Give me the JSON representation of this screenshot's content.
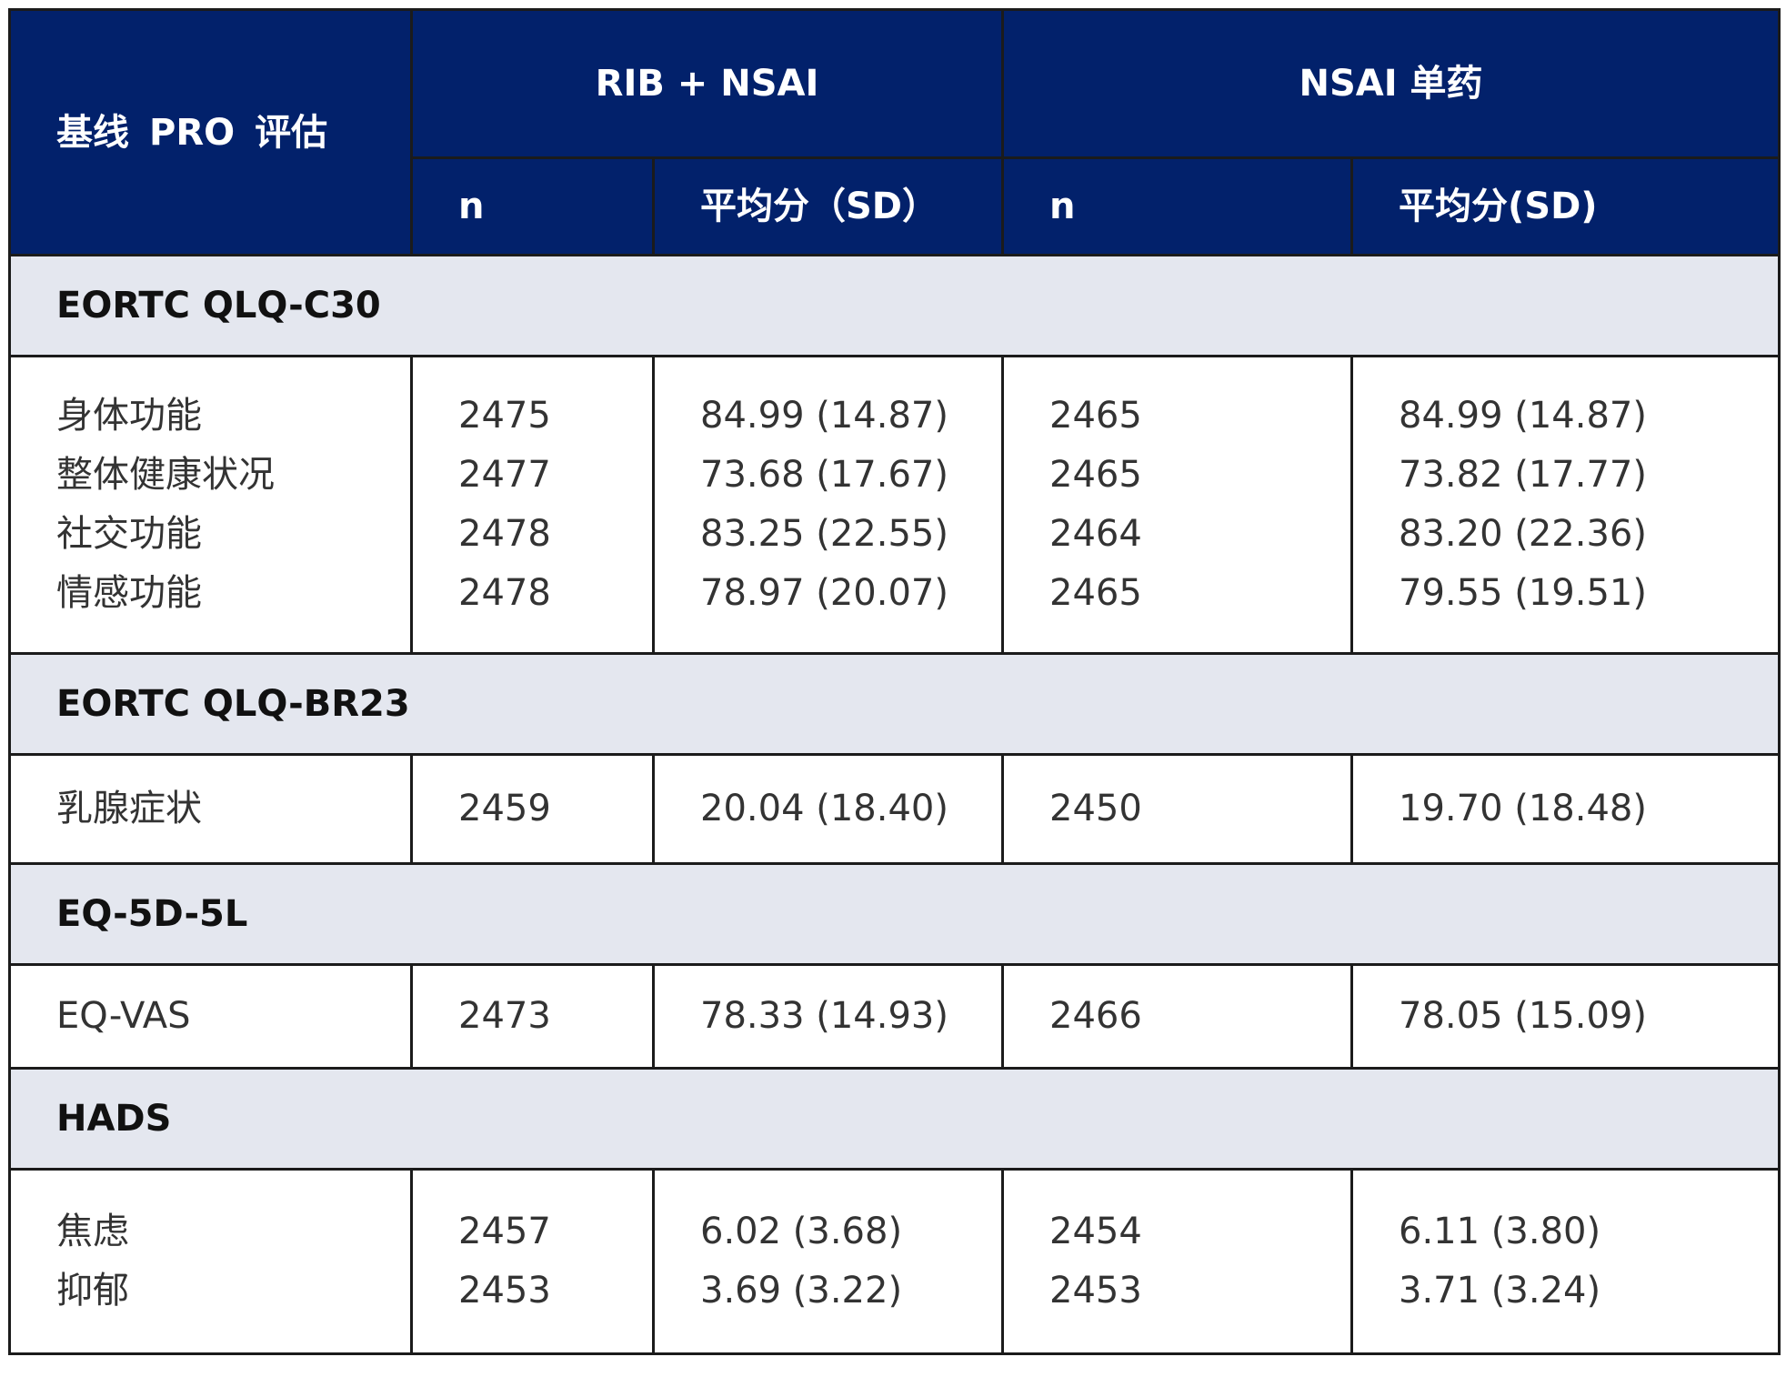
{
  "header": {
    "corner": [
      "基线",
      "PRO",
      "评估"
    ],
    "groups": [
      {
        "label": "RIB + NSAI",
        "sub": [
          "n",
          "平均分（SD）"
        ]
      },
      {
        "label": "NSAI 单药",
        "sub": [
          "n",
          "平均分(SD)"
        ]
      }
    ],
    "header_bg": "#02216b",
    "section_bg": "#e4e7ef"
  },
  "sections": [
    {
      "title": "EORTC QLQ-C30",
      "rows": [
        {
          "label": "身体功能",
          "rib_n": "2475",
          "rib_mean": "84.99 (14.87)",
          "nsai_n": "2465",
          "nsai_mean": "84.99 (14.87)"
        },
        {
          "label": "整体健康状况",
          "rib_n": "2477",
          "rib_mean": "73.68 (17.67)",
          "nsai_n": "2465",
          "nsai_mean": "73.82 (17.77)"
        },
        {
          "label": "社交功能",
          "rib_n": "2478",
          "rib_mean": "83.25 (22.55)",
          "nsai_n": "2464",
          "nsai_mean": "83.20 (22.36)"
        },
        {
          "label": "情感功能",
          "rib_n": "2478",
          "rib_mean": "78.97 (20.07)",
          "nsai_n": "2465",
          "nsai_mean": "79.55 (19.51)"
        }
      ]
    },
    {
      "title": "EORTC QLQ-BR23",
      "rows": [
        {
          "label": "乳腺症状",
          "rib_n": "2459",
          "rib_mean": "20.04 (18.40)",
          "nsai_n": "2450",
          "nsai_mean": "19.70 (18.48)"
        }
      ]
    },
    {
      "title": "EQ-5D-5L",
      "rows": [
        {
          "label": "EQ-VAS",
          "rib_n": "2473",
          "rib_mean": "78.33 (14.93)",
          "nsai_n": "2466",
          "nsai_mean": "78.05 (15.09)"
        }
      ]
    },
    {
      "title": "HADS",
      "rows": [
        {
          "label": "焦虑",
          "rib_n": "2457",
          "rib_mean": "6.02 (3.68)",
          "nsai_n": "2454",
          "nsai_mean": "6.11 (3.80)"
        },
        {
          "label": "抑郁",
          "rib_n": "2453",
          "rib_mean": "3.69 (3.22)",
          "nsai_n": "2453",
          "nsai_mean": "3.71 (3.24)"
        }
      ]
    }
  ]
}
